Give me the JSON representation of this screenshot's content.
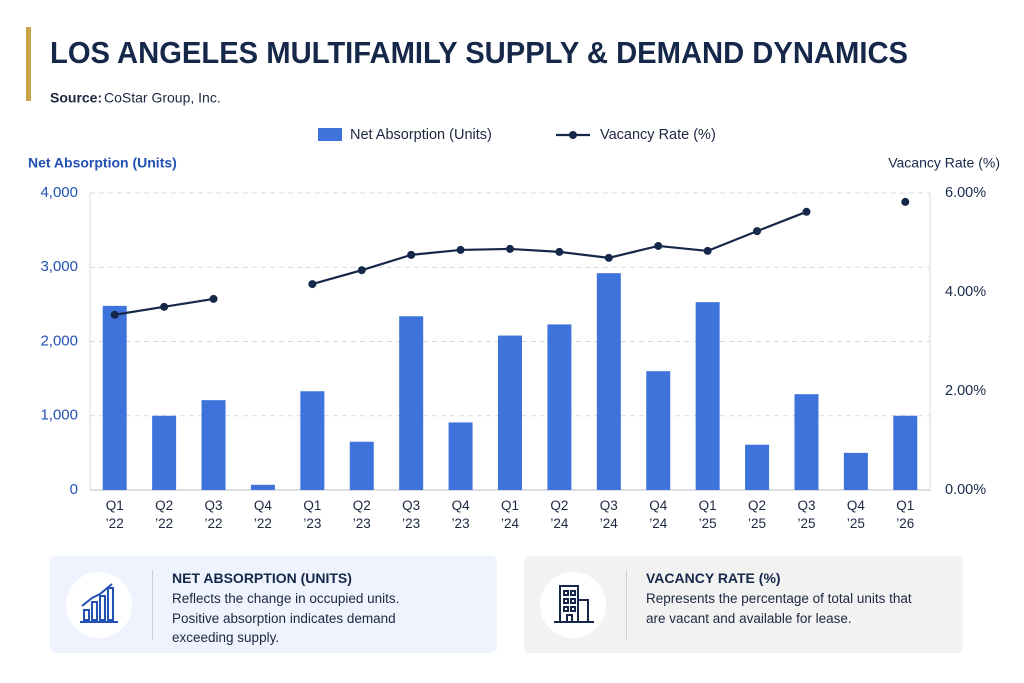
{
  "chart_data": {
    "type": "bar_line",
    "title": "LOS ANGELES MULTIFAMILY SUPPLY & DEMAND DYNAMICS",
    "source_label": "Source:",
    "source": "CoStar Group, Inc.",
    "ylabel": "Net Absorption (Units)",
    "y2label": "Vacancy Rate (%)",
    "categories": [
      "Q1 ’22",
      "Q2 ’22",
      "Q3 ’22",
      "Q4 ’22",
      "Q1 ’23",
      "Q2 ’23",
      "Q3 ’23",
      "Q4 ’23",
      "Q1 ’24",
      "Q2 ’24",
      "Q3 ’24",
      "Q4 ’24",
      "Q1 ’25",
      "Q2 ’25",
      "Q3 ’25",
      "Q4 ’25",
      "Q1 ’26"
    ],
    "series": [
      {
        "name": "Net Absorption (Units)",
        "kind": "bar",
        "color": "#3f73dc",
        "values": [
          2480,
          1000,
          1210,
          70,
          1330,
          650,
          2340,
          910,
          2080,
          2230,
          2920,
          1600,
          2530,
          610,
          1290,
          500,
          1000
        ]
      },
      {
        "name": "Vacancy Rate (%)",
        "kind": "line",
        "axis": "y2",
        "color": "#16284a",
        "values": [
          3.54,
          3.7,
          3.86,
          null,
          4.16,
          4.44,
          4.75,
          4.85,
          4.87,
          4.81,
          4.69,
          4.93,
          4.83,
          5.23,
          5.62,
          null,
          5.82
        ]
      }
    ],
    "ylim": [
      0,
      4000
    ],
    "yticks": [
      0,
      {
        "value": 1000,
        "label": "1,000"
      },
      {
        "value": 2000,
        "label": "2,000"
      },
      {
        "value": 3000,
        "label": "3,000"
      },
      {
        "value": 4000,
        "label": "4,000"
      }
    ],
    "y2lim": [
      0,
      6
    ],
    "y2ticks": [
      {
        "value": 0,
        "label": "0.00%"
      },
      {
        "value": 2,
        "label": "2.00%"
      },
      {
        "value": 4,
        "label": "4.00%"
      },
      {
        "value": 6,
        "label": "6.00%"
      }
    ],
    "grid": true,
    "legend": "top"
  },
  "cards": [
    {
      "title": "NET ABSORPTION (UNITS)",
      "text": "Reflects the change in occupied units. Positive absorption indicates demand exceeding supply."
    },
    {
      "title": "VACANCY RATE (%)",
      "text": "Represents the percentage of total units that are vacant and available for lease."
    }
  ]
}
